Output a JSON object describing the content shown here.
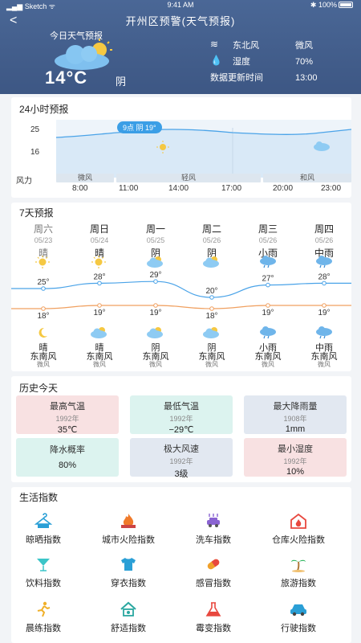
{
  "status": {
    "carrier": "Sketch",
    "time": "9:41 AM",
    "battery": "100%"
  },
  "header": {
    "back_glyph": "<",
    "title": "开州区预警(天气预报)",
    "today_label": "今日天气预报",
    "temperature": "14°C",
    "condition": "阴",
    "wind_label": "东北风",
    "wind_value": "微风",
    "humidity_label": "湿度",
    "humidity_value": "70%",
    "update_label": "数据更新时间",
    "update_value": "13:00"
  },
  "hourly": {
    "title": "24小时预报",
    "y_ticks": [
      "25",
      "16"
    ],
    "wind_row_label": "风力",
    "wind_segments": [
      "微风",
      "轻风",
      "和风"
    ],
    "times": [
      "8:00",
      "11:00",
      "14:00",
      "17:00",
      "20:00",
      "23:00"
    ],
    "tooltip": "9点 阴 19°"
  },
  "daily": {
    "title": "7天预报",
    "days": [
      {
        "name": "周六",
        "date": "05/23",
        "day_weather": "晴",
        "high": "25°",
        "low": "18°",
        "night_weather": "晴",
        "wind": "东南风",
        "level": "微风",
        "day_icon": "sun-icon",
        "night_icon": "moon-icon",
        "past": true
      },
      {
        "name": "周日",
        "date": "05/24",
        "day_weather": "晴",
        "high": "28°",
        "low": "19°",
        "night_weather": "晴",
        "wind": "东南风",
        "level": "微风",
        "day_icon": "sun-icon",
        "night_icon": "cloud-icon",
        "past": false
      },
      {
        "name": "周一",
        "date": "05/25",
        "day_weather": "阴",
        "high": "29°",
        "low": "19°",
        "night_weather": "阴",
        "wind": "东南风",
        "level": "微风",
        "day_icon": "cloud-icon",
        "night_icon": "cloud-icon",
        "past": false
      },
      {
        "name": "周二",
        "date": "05/26",
        "day_weather": "阴",
        "high": "20°",
        "low": "18°",
        "night_weather": "阴",
        "wind": "东南风",
        "level": "微风",
        "day_icon": "cloud-icon",
        "night_icon": "cloud-icon",
        "past": false
      },
      {
        "name": "周三",
        "date": "05/26",
        "day_weather": "小雨",
        "high": "27°",
        "low": "19°",
        "night_weather": "小雨",
        "wind": "东南风",
        "level": "微风",
        "day_icon": "rain-icon",
        "night_icon": "rain-icon",
        "past": false
      },
      {
        "name": "周四",
        "date": "05/26",
        "day_weather": "中雨",
        "high": "28°",
        "low": "19°",
        "night_weather": "中雨",
        "wind": "东南风",
        "level": "微风",
        "day_icon": "rain-icon",
        "night_icon": "rain-icon",
        "past": false
      }
    ]
  },
  "history": {
    "title": "历史今天",
    "items": [
      {
        "label": "最高气温",
        "year": "1992年",
        "value": "35℃"
      },
      {
        "label": "最低气温",
        "year": "1992年",
        "value": "−29℃"
      },
      {
        "label": "最大降雨量",
        "year": "1908年",
        "value": "1mm"
      },
      {
        "label": "降水概率",
        "year": "",
        "value": "80%"
      },
      {
        "label": "极大风速",
        "year": "1992年",
        "value": "3级"
      },
      {
        "label": "最小湿度",
        "year": "1992年",
        "value": "10%"
      }
    ]
  },
  "life": {
    "title": "生活指数",
    "items": [
      {
        "label": "晾晒指数",
        "icon": "hanger-icon",
        "color": "#2a9fd6"
      },
      {
        "label": "城市火险指数",
        "icon": "fire-icon",
        "color": "#f07a2a"
      },
      {
        "label": "洗车指数",
        "icon": "car-wash-icon",
        "color": "#8a63d2"
      },
      {
        "label": "仓库火险指数",
        "icon": "warehouse-fire-icon",
        "color": "#e8483f"
      },
      {
        "label": "饮料指数",
        "icon": "drink-icon",
        "color": "#3bc5c8"
      },
      {
        "label": "穿衣指数",
        "icon": "shirt-icon",
        "color": "#2a9fd6"
      },
      {
        "label": "感冒指数",
        "icon": "pill-icon",
        "color": "#f0a02a"
      },
      {
        "label": "旅游指数",
        "icon": "palm-tree-icon",
        "color": "#28b35a"
      },
      {
        "label": "晨练指数",
        "icon": "exercise-icon",
        "color": "#f0b02a"
      },
      {
        "label": "舒适指数",
        "icon": "home-comfort-icon",
        "color": "#2aa7a0"
      },
      {
        "label": "霉变指数",
        "icon": "flask-icon",
        "color": "#e8483f"
      },
      {
        "label": "行驶指数",
        "icon": "car-icon",
        "color": "#2a9fd6"
      }
    ]
  }
}
